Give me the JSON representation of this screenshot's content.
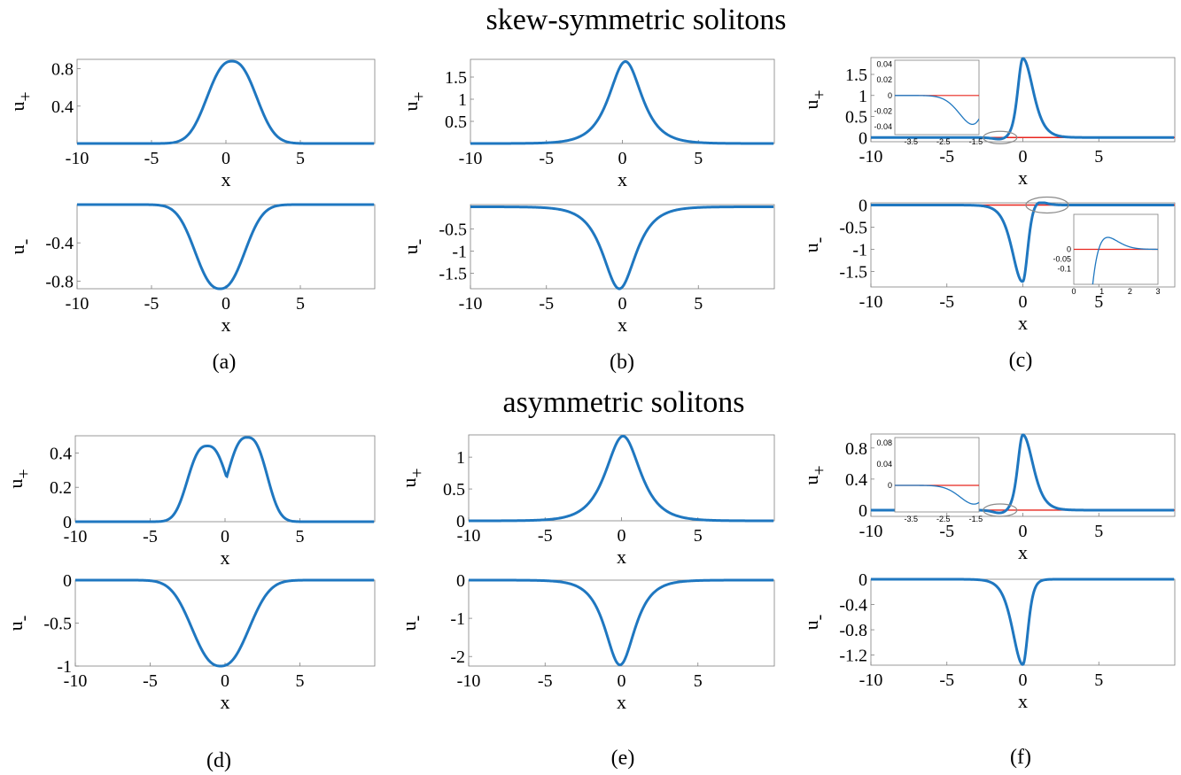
{
  "section_titles": [
    "skew-symmetric solitons",
    "asymmetric solitons"
  ],
  "panel_labels": [
    "(a)",
    "(b)",
    "(c)",
    "(d)",
    "(e)",
    "(f)"
  ],
  "colors": {
    "curve": "#1f77c0",
    "zero_line": "#e8261f",
    "frame": "#7f7f7f",
    "ellipse": "#8a8a8a"
  },
  "chart_data": [
    {
      "type": "line",
      "panel": "(a)",
      "group": "skew-symmetric solitons",
      "subplots": [
        {
          "ylabel": "u+",
          "xlabel": "x",
          "xlim": [
            -10,
            10
          ],
          "ylim": [
            0,
            0.9
          ],
          "xticks": [
            -10,
            -5,
            0,
            5
          ],
          "yticks": [
            0.4,
            0.8
          ],
          "ytick_labels": [
            "0.4",
            "0.8"
          ],
          "profile": {
            "kind": "bump",
            "peak": 0.88,
            "center": 0.4,
            "width": 2.1,
            "shape": "flat"
          }
        },
        {
          "ylabel": "u-",
          "xlabel": "x",
          "xlim": [
            -10,
            10
          ],
          "ylim": [
            -0.88,
            0
          ],
          "xticks": [
            -10,
            -5,
            0,
            5
          ],
          "yticks": [
            -0.4,
            -0.8
          ],
          "ytick_labels": [
            "-0.4",
            "-0.8"
          ],
          "profile": {
            "kind": "bump",
            "peak": -0.88,
            "center": -0.4,
            "width": 2.1,
            "shape": "flat"
          }
        }
      ]
    },
    {
      "type": "line",
      "panel": "(b)",
      "group": "skew-symmetric solitons",
      "subplots": [
        {
          "ylabel": "u+",
          "xlabel": "x",
          "xlim": [
            -10,
            10
          ],
          "ylim": [
            0,
            1.9
          ],
          "xticks": [
            -10,
            -5,
            0,
            5
          ],
          "yticks": [
            0.5,
            1,
            1.5
          ],
          "ytick_labels": [
            "0.5",
            "1",
            "1.5"
          ],
          "profile": {
            "kind": "bump",
            "peak": 1.85,
            "center": 0.2,
            "width": 0.95,
            "shape": "sech"
          }
        },
        {
          "ylabel": "u-",
          "xlabel": "x",
          "xlim": [
            -10,
            10
          ],
          "ylim": [
            -1.85,
            0.05
          ],
          "xticks": [
            -10,
            -5,
            0,
            5
          ],
          "yticks": [
            -0.5,
            -1,
            -1.5
          ],
          "ytick_labels": [
            "-0.5",
            "-1",
            "-1.5"
          ],
          "profile": {
            "kind": "bump",
            "peak": -1.85,
            "center": -0.2,
            "width": 0.95,
            "shape": "sech"
          }
        }
      ]
    },
    {
      "type": "line",
      "panel": "(c)",
      "group": "skew-symmetric solitons",
      "subplots": [
        {
          "ylabel": "u+",
          "xlabel": "x",
          "xlim": [
            -10,
            10
          ],
          "ylim": [
            -0.1,
            1.9
          ],
          "xticks": [
            -10,
            -5,
            0,
            5
          ],
          "yticks": [
            0,
            0.5,
            1,
            1.5
          ],
          "ytick_labels": [
            "0",
            "0.5",
            "1",
            "1.5"
          ],
          "profile": {
            "kind": "asym",
            "peak": 1.88,
            "center": 0.0,
            "left_width": 0.45,
            "right_width": 0.9,
            "dip_depth": -0.045,
            "dip_center": -1.45,
            "dip_width": 0.7
          },
          "zero_line": true,
          "ellipse_x": -1.5,
          "inset": {
            "xlim": [
              -4,
              -1.4
            ],
            "ylim": [
              -0.05,
              0.045
            ],
            "xticks": [
              -3.5,
              -2.5,
              -1.5
            ],
            "yticks": [
              0.04,
              0.02,
              0,
              -0.02,
              -0.04
            ],
            "ytick_labels": [
              "0.04",
              "0.02",
              "0",
              "-0.02",
              "-0.04"
            ]
          }
        },
        {
          "ylabel": "u-",
          "xlabel": "x",
          "xlim": [
            -10,
            10
          ],
          "ylim": [
            -1.85,
            0.05
          ],
          "xticks": [
            -10,
            -5,
            0,
            5
          ],
          "yticks": [
            0,
            -0.5,
            -1,
            -1.5
          ],
          "ytick_labels": [
            "0",
            "-0.5",
            "-1",
            "-1.5"
          ],
          "profile": {
            "kind": "asym",
            "peak": -1.82,
            "center": 0.0,
            "left_width": 0.9,
            "right_width": 0.45,
            "dip_depth": 0.15,
            "dip_center": 0.6,
            "dip_width": 0.9
          },
          "zero_line": true,
          "ellipse_x": 1.6,
          "inset": {
            "xlim": [
              0,
              3
            ],
            "ylim": [
              -0.18,
              0.18
            ],
            "xticks": [
              0,
              1,
              2,
              3
            ],
            "yticks": [
              0,
              -0.05,
              -0.1
            ],
            "ytick_labels": [
              "0",
              "-0.05",
              "-0.1"
            ]
          }
        }
      ]
    },
    {
      "type": "line",
      "panel": "(d)",
      "group": "asymmetric solitons",
      "subplots": [
        {
          "ylabel": "u+",
          "xlabel": "x",
          "xlim": [
            -10,
            10
          ],
          "ylim": [
            0,
            0.5
          ],
          "xticks": [
            -10,
            -5,
            0,
            5
          ],
          "yticks": [
            0,
            0.2,
            0.4
          ],
          "ytick_labels": [
            "0",
            "0.2",
            "0.4"
          ],
          "profile": {
            "kind": "shoulder",
            "peak": 0.49,
            "center": 1.5,
            "shoulder": 0.44,
            "shoulder_center": -1.2,
            "width": 1.6
          }
        },
        {
          "ylabel": "u-",
          "xlabel": "x",
          "xlim": [
            -10,
            10
          ],
          "ylim": [
            -1.0,
            0
          ],
          "xticks": [
            -10,
            -5,
            0,
            5
          ],
          "yticks": [
            0,
            -0.5,
            -1
          ],
          "ytick_labels": [
            "0",
            "-0.5",
            "-1"
          ],
          "profile": {
            "kind": "bump",
            "peak": -1.0,
            "center": -0.3,
            "width": 2.4,
            "shape": "flat"
          }
        }
      ]
    },
    {
      "type": "line",
      "panel": "(e)",
      "group": "asymmetric solitons",
      "subplots": [
        {
          "ylabel": "u+",
          "xlabel": "x",
          "xlim": [
            -10,
            10
          ],
          "ylim": [
            0,
            1.35
          ],
          "xticks": [
            -10,
            -5,
            0,
            5
          ],
          "yticks": [
            0,
            0.5,
            1
          ],
          "ytick_labels": [
            "0",
            "0.5",
            "1"
          ],
          "profile": {
            "kind": "bump",
            "peak": 1.33,
            "center": 0.1,
            "width": 1.0,
            "shape": "sech"
          }
        },
        {
          "ylabel": "u-",
          "xlabel": "x",
          "xlim": [
            -10,
            10
          ],
          "ylim": [
            -2.25,
            0
          ],
          "xticks": [
            -10,
            -5,
            0,
            5
          ],
          "yticks": [
            0,
            -1,
            -2
          ],
          "ytick_labels": [
            "0",
            "-1",
            "-2"
          ],
          "profile": {
            "kind": "bump",
            "peak": -2.22,
            "center": -0.1,
            "width": 0.85,
            "shape": "sech"
          }
        }
      ]
    },
    {
      "type": "line",
      "panel": "(f)",
      "group": "asymmetric solitons",
      "subplots": [
        {
          "ylabel": "u+",
          "xlabel": "x",
          "xlim": [
            -10,
            10
          ],
          "ylim": [
            -0.08,
            0.98
          ],
          "xticks": [
            -10,
            -5,
            0,
            5
          ],
          "yticks": [
            0,
            0.4,
            0.8
          ],
          "ytick_labels": [
            "0",
            "0.4",
            "0.8"
          ],
          "profile": {
            "kind": "asym",
            "peak": 0.97,
            "center": 0.0,
            "left_width": 0.45,
            "right_width": 0.9,
            "dip_depth": -0.04,
            "dip_center": -1.45,
            "dip_width": 0.7
          },
          "zero_line": true,
          "ellipse_x": -1.5,
          "inset": {
            "xlim": [
              -4,
              -1.4
            ],
            "ylim": [
              -0.05,
              0.09
            ],
            "xticks": [
              -3.5,
              -2.5,
              -1.5
            ],
            "yticks": [
              0.08,
              0.04,
              0
            ],
            "ytick_labels": [
              "0.08",
              "0.04",
              "0"
            ]
          }
        },
        {
          "ylabel": "u-",
          "xlabel": "x",
          "xlim": [
            -10,
            10
          ],
          "ylim": [
            -1.36,
            0
          ],
          "xticks": [
            -10,
            -5,
            0,
            5
          ],
          "yticks": [
            0,
            -0.4,
            -0.8,
            -1.2
          ],
          "ytick_labels": [
            "0",
            "-0.4",
            "-0.8",
            "-1.2"
          ],
          "profile": {
            "kind": "asym",
            "peak": -1.35,
            "center": 0.0,
            "left_width": 0.9,
            "right_width": 0.45,
            "dip_depth": 0.0,
            "dip_center": 0.6,
            "dip_width": 0.9
          }
        }
      ]
    }
  ]
}
